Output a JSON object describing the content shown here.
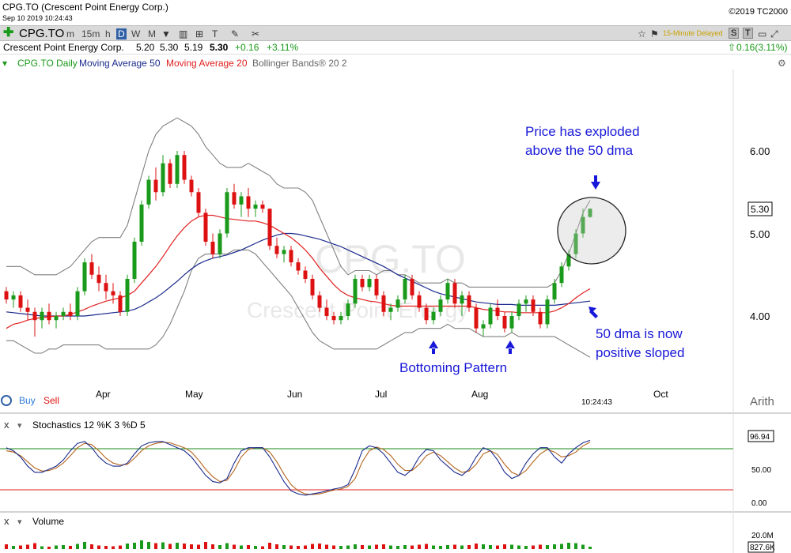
{
  "header": {
    "title": "CPG.TO (Crescent Point Energy Corp.)",
    "datetime": "Sep 10 2019 10:24:43",
    "copyright": "©2019 TC2000"
  },
  "toolbar": {
    "plus_icon": "plus-icon",
    "symbol": "CPG.TO",
    "timeframes": [
      "m",
      "15m",
      "h",
      "D",
      "W",
      "M"
    ],
    "selected_timeframe": "D",
    "delayed_label": "15-Minute Delayed",
    "s_button": "S",
    "t_button": "T"
  },
  "quote": {
    "name": "Crescent Point Energy Corp.",
    "open": "5.20",
    "high": "5.30",
    "low": "5.19",
    "last": "5.30",
    "change": "+0.16",
    "change_pct": "+3.11%",
    "right_change": "0.16(3.11%)"
  },
  "legend": {
    "symbol_daily": "CPG.TO Daily",
    "ma50": "Moving Average 50",
    "ma20": "Moving Average 20",
    "bbands": "Bollinger Bands® 20 2"
  },
  "colors": {
    "up": "#1a9a1a",
    "down": "#dd1111",
    "ma50": "#1a2a8c",
    "ma20": "#e02020",
    "bb": "#808080",
    "annotation": "#1818d8"
  },
  "watermark": {
    "symbol": "CPG.TO",
    "name": "Crescent Point Energy"
  },
  "annotations": {
    "exploded_line1": "Price has exploded",
    "exploded_line2": "above the 50 dma",
    "dma_line1": "50 dma is now",
    "dma_line2": "positive sloped",
    "bottoming": "Bottoming Pattern"
  },
  "price_axis": {
    "ticks": [
      "6.00",
      "5.00",
      "4.00"
    ],
    "current": "5.30",
    "scale": "Arith"
  },
  "time_axis": {
    "labels": [
      "Apr",
      "May",
      "Jun",
      "Jul",
      "Aug",
      "Oct"
    ],
    "current_time": "10:24:43"
  },
  "buy_sell": {
    "buy": "Buy",
    "sell": "Sell"
  },
  "stochastics": {
    "title": "Stochastics 12 %K 3  %D 5",
    "ticks": [
      "50.00",
      "0.00"
    ],
    "current": "96.94"
  },
  "volume": {
    "title": "Volume",
    "ticks": [
      "20.0M"
    ],
    "current": "827.6K"
  },
  "chart_data": {
    "type": "candlestick",
    "title": "CPG.TO Daily",
    "ylim": [
      3.4,
      6.8
    ],
    "candles": [
      [
        4.3,
        4.35,
        4.15,
        4.2
      ],
      [
        4.2,
        4.3,
        4.1,
        4.25
      ],
      [
        4.25,
        4.3,
        4.05,
        4.1
      ],
      [
        4.1,
        4.2,
        3.95,
        4.05
      ],
      [
        4.05,
        4.1,
        3.75,
        3.95
      ],
      [
        3.95,
        4.1,
        3.85,
        4.05
      ],
      [
        4.05,
        4.15,
        3.9,
        3.95
      ],
      [
        3.95,
        4.05,
        3.85,
        4.0
      ],
      [
        4.0,
        4.1,
        3.95,
        4.05
      ],
      [
        4.05,
        4.15,
        3.95,
        4.0
      ],
      [
        4.0,
        4.35,
        3.95,
        4.3
      ],
      [
        4.3,
        4.7,
        4.25,
        4.65
      ],
      [
        4.65,
        4.75,
        4.45,
        4.5
      ],
      [
        4.5,
        4.6,
        4.3,
        4.4
      ],
      [
        4.4,
        4.5,
        4.2,
        4.3
      ],
      [
        4.3,
        4.4,
        4.15,
        4.25
      ],
      [
        4.25,
        4.3,
        4.0,
        4.05
      ],
      [
        4.05,
        4.5,
        4.0,
        4.45
      ],
      [
        4.45,
        4.95,
        4.4,
        4.9
      ],
      [
        4.9,
        5.4,
        4.85,
        5.35
      ],
      [
        5.35,
        5.7,
        5.3,
        5.65
      ],
      [
        5.65,
        5.8,
        5.4,
        5.5
      ],
      [
        5.5,
        5.95,
        5.45,
        5.85
      ],
      [
        5.85,
        5.9,
        5.55,
        5.6
      ],
      [
        5.6,
        6.0,
        5.55,
        5.95
      ],
      [
        5.95,
        6.0,
        5.6,
        5.65
      ],
      [
        5.65,
        5.7,
        5.45,
        5.5
      ],
      [
        5.5,
        5.55,
        5.2,
        5.25
      ],
      [
        5.25,
        5.3,
        4.85,
        4.9
      ],
      [
        4.9,
        5.0,
        4.7,
        4.75
      ],
      [
        4.75,
        5.05,
        4.7,
        5.0
      ],
      [
        5.0,
        5.55,
        4.95,
        5.5
      ],
      [
        5.5,
        5.6,
        5.3,
        5.35
      ],
      [
        5.35,
        5.5,
        5.2,
        5.45
      ],
      [
        5.45,
        5.55,
        5.2,
        5.3
      ],
      [
        5.3,
        5.4,
        5.2,
        5.35
      ],
      [
        5.35,
        5.4,
        5.25,
        5.3
      ],
      [
        5.3,
        5.3,
        4.8,
        4.85
      ],
      [
        4.85,
        4.95,
        4.7,
        4.75
      ],
      [
        4.75,
        4.85,
        4.65,
        4.8
      ],
      [
        4.8,
        4.85,
        4.6,
        4.65
      ],
      [
        4.65,
        4.7,
        4.5,
        4.55
      ],
      [
        4.55,
        4.6,
        4.4,
        4.45
      ],
      [
        4.45,
        4.5,
        4.2,
        4.25
      ],
      [
        4.25,
        4.3,
        4.05,
        4.1
      ],
      [
        4.1,
        4.2,
        3.95,
        4.0
      ],
      [
        4.0,
        4.05,
        3.9,
        3.95
      ],
      [
        3.95,
        4.05,
        3.9,
        4.0
      ],
      [
        4.0,
        4.2,
        3.95,
        4.15
      ],
      [
        4.15,
        4.5,
        4.1,
        4.45
      ],
      [
        4.45,
        4.5,
        4.3,
        4.35
      ],
      [
        4.35,
        4.5,
        4.3,
        4.45
      ],
      [
        4.45,
        4.5,
        4.2,
        4.25
      ],
      [
        4.25,
        4.3,
        4.0,
        4.05
      ],
      [
        4.05,
        4.15,
        3.95,
        4.1
      ],
      [
        4.1,
        4.25,
        4.05,
        4.2
      ],
      [
        4.2,
        4.5,
        4.15,
        4.45
      ],
      [
        4.45,
        4.5,
        4.2,
        4.25
      ],
      [
        4.25,
        4.3,
        4.05,
        4.1
      ],
      [
        4.1,
        4.15,
        3.9,
        3.95
      ],
      [
        3.95,
        4.1,
        3.9,
        4.05
      ],
      [
        4.05,
        4.25,
        4.0,
        4.2
      ],
      [
        4.2,
        4.45,
        4.15,
        4.4
      ],
      [
        4.4,
        4.45,
        4.1,
        4.15
      ],
      [
        4.15,
        4.3,
        4.0,
        4.25
      ],
      [
        4.25,
        4.3,
        4.05,
        4.1
      ],
      [
        4.1,
        4.15,
        3.8,
        3.85
      ],
      [
        3.85,
        3.95,
        3.75,
        3.9
      ],
      [
        3.9,
        4.15,
        3.85,
        4.1
      ],
      [
        4.1,
        4.2,
        3.95,
        4.0
      ],
      [
        4.0,
        4.05,
        3.8,
        3.85
      ],
      [
        3.85,
        4.05,
        3.8,
        4.0
      ],
      [
        4.0,
        4.2,
        3.95,
        4.15
      ],
      [
        4.15,
        4.25,
        4.05,
        4.2
      ],
      [
        4.2,
        4.25,
        4.0,
        4.05
      ],
      [
        4.05,
        4.1,
        3.85,
        3.9
      ],
      [
        3.9,
        4.25,
        3.85,
        4.2
      ],
      [
        4.2,
        4.45,
        4.15,
        4.4
      ],
      [
        4.4,
        4.65,
        4.35,
        4.6
      ],
      [
        4.6,
        4.8,
        4.55,
        4.75
      ],
      [
        4.75,
        5.05,
        4.7,
        5.0
      ],
      [
        5.0,
        5.3,
        4.95,
        5.2
      ],
      [
        5.2,
        5.3,
        5.19,
        5.3
      ]
    ],
    "bollinger_upper": [
      4.6,
      4.6,
      4.6,
      4.55,
      4.5,
      4.5,
      4.5,
      4.5,
      4.55,
      4.6,
      4.7,
      4.8,
      4.9,
      4.95,
      4.95,
      4.95,
      4.95,
      5.1,
      5.4,
      5.7,
      6.0,
      6.2,
      6.3,
      6.35,
      6.4,
      6.35,
      6.3,
      6.2,
      6.05,
      5.95,
      5.85,
      5.8,
      5.8,
      5.8,
      5.85,
      5.8,
      5.75,
      5.7,
      5.6,
      5.55,
      5.55,
      5.55,
      5.5,
      5.4,
      5.2,
      5.0,
      4.8,
      4.6,
      4.5,
      4.55,
      4.55,
      4.55,
      4.5,
      4.55,
      4.55,
      4.5,
      4.5,
      4.45,
      4.4,
      4.4,
      4.4,
      4.4,
      4.45,
      4.4,
      4.4,
      4.35,
      4.35,
      4.35,
      4.35,
      4.35,
      4.35,
      4.35,
      4.35,
      4.35,
      4.35,
      4.35,
      4.35,
      4.4,
      4.55,
      4.75,
      5.0,
      5.25,
      5.4
    ],
    "bollinger_lower": [
      3.7,
      3.7,
      3.65,
      3.6,
      3.55,
      3.55,
      3.6,
      3.6,
      3.65,
      3.65,
      3.65,
      3.65,
      3.65,
      3.65,
      3.6,
      3.6,
      3.6,
      3.6,
      3.6,
      3.6,
      3.6,
      3.65,
      3.75,
      3.9,
      4.1,
      4.3,
      4.55,
      4.7,
      4.75,
      4.75,
      4.75,
      4.75,
      4.8,
      4.8,
      4.8,
      4.75,
      4.65,
      4.55,
      4.45,
      4.35,
      4.25,
      4.1,
      3.95,
      3.8,
      3.7,
      3.65,
      3.6,
      3.6,
      3.6,
      3.6,
      3.6,
      3.6,
      3.6,
      3.65,
      3.7,
      3.75,
      3.8,
      3.8,
      3.85,
      3.85,
      3.85,
      3.85,
      3.9,
      3.85,
      3.85,
      3.85,
      3.8,
      3.75,
      3.75,
      3.75,
      3.75,
      3.8,
      3.75,
      3.75,
      3.75,
      3.75,
      3.75,
      3.75,
      3.7,
      3.65,
      3.6,
      3.55,
      3.5
    ],
    "ma20": [
      3.85,
      3.9,
      3.92,
      3.95,
      3.97,
      3.98,
      3.99,
      4.0,
      4.0,
      4.02,
      4.05,
      4.08,
      4.12,
      4.15,
      4.18,
      4.2,
      4.22,
      4.25,
      4.3,
      4.4,
      4.5,
      4.6,
      4.72,
      4.85,
      4.97,
      5.07,
      5.15,
      5.2,
      5.22,
      5.22,
      5.2,
      5.18,
      5.17,
      5.16,
      5.15,
      5.15,
      5.13,
      5.1,
      5.05,
      5.0,
      4.95,
      4.88,
      4.8,
      4.7,
      4.58,
      4.48,
      4.38,
      4.3,
      4.25,
      4.22,
      4.2,
      4.18,
      4.17,
      4.15,
      4.13,
      4.12,
      4.12,
      4.12,
      4.12,
      4.12,
      4.12,
      4.12,
      4.12,
      4.12,
      4.12,
      4.12,
      4.1,
      4.08,
      4.07,
      4.06,
      4.05,
      4.05,
      4.04,
      4.04,
      4.04,
      4.04,
      4.04,
      4.06,
      4.1,
      4.15,
      4.22,
      4.28,
      4.33
    ],
    "ma50": [
      4.05,
      4.04,
      4.03,
      4.02,
      4.01,
      4.0,
      4.0,
      4.0,
      4.0,
      4.0,
      4.0,
      4.0,
      4.01,
      4.02,
      4.03,
      4.04,
      4.05,
      4.06,
      4.08,
      4.12,
      4.17,
      4.22,
      4.28,
      4.35,
      4.42,
      4.5,
      4.57,
      4.63,
      4.67,
      4.7,
      4.72,
      4.74,
      4.77,
      4.8,
      4.84,
      4.88,
      4.92,
      4.95,
      4.98,
      5.0,
      5.0,
      4.99,
      4.97,
      4.95,
      4.93,
      4.9,
      4.87,
      4.84,
      4.8,
      4.76,
      4.72,
      4.68,
      4.64,
      4.6,
      4.55,
      4.5,
      4.46,
      4.42,
      4.38,
      4.34,
      4.3,
      4.27,
      4.25,
      4.23,
      4.21,
      4.19,
      4.17,
      4.16,
      4.15,
      4.14,
      4.14,
      4.14,
      4.13,
      4.13,
      4.13,
      4.13,
      4.13,
      4.13,
      4.14,
      4.15,
      4.16,
      4.17,
      4.18
    ],
    "stoch_k": [
      85,
      80,
      70,
      55,
      45,
      45,
      50,
      55,
      65,
      80,
      92,
      95,
      85,
      70,
      60,
      55,
      55,
      60,
      75,
      88,
      93,
      95,
      95,
      90,
      85,
      80,
      70,
      55,
      40,
      30,
      28,
      35,
      60,
      80,
      85,
      85,
      85,
      70,
      50,
      30,
      15,
      10,
      8,
      10,
      12,
      15,
      18,
      20,
      25,
      50,
      80,
      88,
      85,
      75,
      60,
      45,
      40,
      50,
      70,
      82,
      80,
      65,
      55,
      45,
      40,
      50,
      70,
      85,
      80,
      65,
      45,
      35,
      40,
      60,
      75,
      85,
      85,
      70,
      60,
      75,
      85,
      93,
      96.94
    ],
    "stoch_d": [
      80,
      78,
      72,
      62,
      52,
      47,
      48,
      52,
      60,
      72,
      85,
      92,
      90,
      80,
      68,
      60,
      57,
      58,
      68,
      80,
      88,
      92,
      94,
      93,
      89,
      85,
      78,
      65,
      50,
      38,
      30,
      32,
      48,
      70,
      82,
      85,
      85,
      78,
      62,
      42,
      25,
      15,
      10,
      9,
      10,
      13,
      16,
      18,
      22,
      35,
      62,
      80,
      86,
      82,
      72,
      58,
      48,
      48,
      58,
      72,
      78,
      72,
      62,
      52,
      45,
      47,
      58,
      75,
      80,
      74,
      58,
      45,
      40,
      48,
      62,
      75,
      82,
      78,
      70,
      72,
      78,
      88,
      94
    ],
    "volume": [
      1.2,
      0.8,
      0.9,
      1.1,
      1.5,
      0.7,
      0.6,
      0.9,
      1.0,
      0.8,
      1.3,
      1.8,
      1.2,
      0.9,
      0.8,
      0.7,
      0.9,
      1.4,
      1.6,
      2.2,
      1.8,
      1.5,
      1.7,
      1.3,
      1.6,
      1.4,
      1.2,
      1.1,
      1.8,
      1.2,
      1.0,
      1.5,
      1.1,
      0.9,
      1.0,
      0.8,
      0.7,
      1.6,
      1.2,
      1.0,
      0.9,
      0.8,
      0.9,
      1.3,
      1.4,
      1.1,
      0.9,
      0.8,
      0.9,
      1.2,
      1.0,
      0.9,
      1.1,
      1.2,
      0.9,
      0.8,
      1.0,
      0.9,
      1.1,
      1.3,
      0.9,
      0.8,
      1.0,
      1.1,
      0.9,
      1.0,
      1.4,
      1.2,
      1.0,
      0.9,
      1.2,
      1.1,
      0.9,
      0.8,
      0.9,
      1.1,
      1.0,
      1.2,
      1.3,
      1.6,
      1.5,
      1.1,
      0.6
    ]
  }
}
